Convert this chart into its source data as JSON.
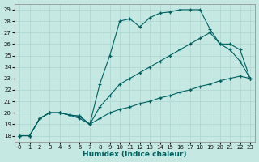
{
  "xlabel": "Humidex (Indice chaleur)",
  "bg_color": "#c5e8e3",
  "grid_color": "#b0d8d3",
  "line_color": "#006060",
  "xlim": [
    -0.5,
    23.5
  ],
  "ylim": [
    17.5,
    29.5
  ],
  "xticks": [
    0,
    1,
    2,
    3,
    4,
    5,
    6,
    7,
    8,
    9,
    10,
    11,
    12,
    13,
    14,
    15,
    16,
    17,
    18,
    19,
    20,
    21,
    22,
    23
  ],
  "yticks": [
    18,
    19,
    20,
    21,
    22,
    23,
    24,
    25,
    26,
    27,
    28,
    29
  ],
  "line1_x": [
    0,
    1,
    2,
    3,
    4,
    5,
    6,
    7,
    8,
    9,
    10,
    11,
    12,
    13,
    14,
    15,
    16,
    17,
    18,
    19,
    20,
    21,
    22,
    23
  ],
  "line1_y": [
    18.0,
    18.0,
    19.5,
    20.0,
    20.0,
    19.8,
    19.7,
    19.0,
    19.5,
    20.0,
    20.3,
    20.5,
    20.8,
    21.0,
    21.3,
    21.5,
    21.8,
    22.0,
    22.3,
    22.5,
    22.8,
    23.0,
    23.2,
    23.0
  ],
  "line2_x": [
    0,
    1,
    2,
    3,
    4,
    5,
    6,
    7,
    8,
    9,
    10,
    11,
    12,
    13,
    14,
    15,
    16,
    17,
    18,
    19,
    20,
    21,
    22,
    23
  ],
  "line2_y": [
    18.0,
    18.0,
    19.5,
    20.0,
    20.0,
    19.8,
    19.7,
    19.0,
    20.5,
    21.5,
    22.5,
    23.0,
    23.5,
    24.0,
    24.5,
    25.0,
    25.5,
    26.0,
    26.5,
    27.0,
    26.0,
    25.5,
    24.5,
    23.0
  ],
  "line3_x": [
    0,
    1,
    2,
    3,
    4,
    5,
    6,
    7,
    8,
    9,
    10,
    11,
    12,
    13,
    14,
    15,
    16,
    17,
    18,
    19,
    20,
    21,
    22,
    23
  ],
  "line3_y": [
    18.0,
    18.0,
    19.5,
    20.0,
    20.0,
    19.8,
    19.5,
    19.0,
    22.5,
    25.0,
    28.0,
    28.2,
    27.5,
    28.3,
    28.7,
    28.8,
    29.0,
    29.0,
    29.0,
    27.3,
    26.0,
    26.0,
    25.5,
    23.0
  ]
}
